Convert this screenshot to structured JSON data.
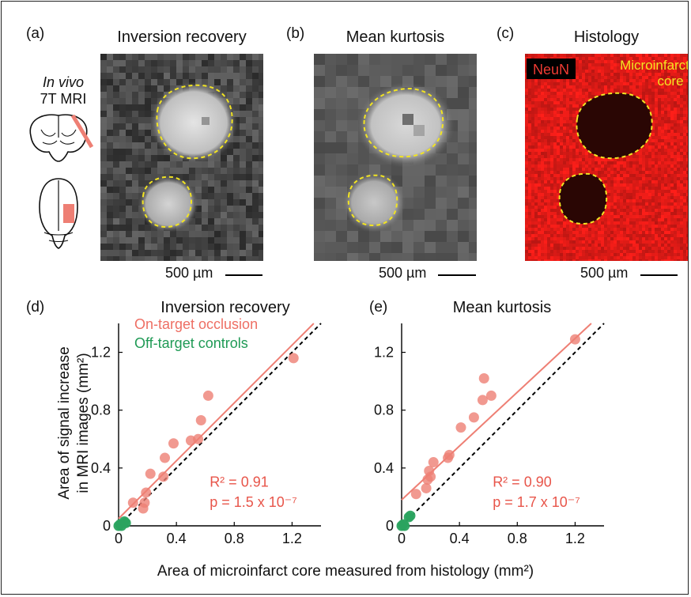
{
  "panels": {
    "a": {
      "label": "(a)",
      "title": "Inversion recovery",
      "scale_bar": "500 µm"
    },
    "b": {
      "label": "(b)",
      "title": "Mean kurtosis",
      "scale_bar": "500 µm"
    },
    "c": {
      "label": "(c)",
      "title": "Histology",
      "scale_bar": "500 µm",
      "stain_label": "NeuN",
      "core_label_line1": "Microinfarct",
      "core_label_line2": "core"
    }
  },
  "side_label": {
    "line1": "In vivo",
    "line2": "7T MRI"
  },
  "colors": {
    "on_target": "#ee7f74",
    "off_target": "#2aa35f",
    "outline": "#f2e422",
    "stain": "#e8201c"
  },
  "y_axis_label": {
    "line1": "Area of signal increase",
    "line2": "in MRI images (mm²)"
  },
  "x_axis_label": "Area of microinfarct core measured from histology (mm²)",
  "chart_data": [
    {
      "type": "scatter",
      "panel_label": "(d)",
      "title": "Inversion recovery",
      "legend": [
        "On-target occlusion",
        "Off-target controls"
      ],
      "xlim": [
        0,
        1.4
      ],
      "ylim": [
        0,
        1.4
      ],
      "xticks": [
        "0",
        "0.4",
        "0.8",
        "1.2"
      ],
      "yticks": [
        "0",
        "0.4",
        "0.8",
        "1.2"
      ],
      "stats": {
        "r2": "R² = 0.91",
        "p": "p = 1.5 x 10⁻⁷"
      },
      "fit_line": {
        "intercept": 0.05,
        "slope": 1.0
      },
      "series": [
        {
          "name": "On-target occlusion",
          "x": [
            0.1,
            0.17,
            0.18,
            0.19,
            0.22,
            0.31,
            0.32,
            0.38,
            0.5,
            0.55,
            0.57,
            0.62,
            1.21
          ],
          "y": [
            0.16,
            0.12,
            0.16,
            0.23,
            0.36,
            0.34,
            0.47,
            0.57,
            0.59,
            0.6,
            0.73,
            0.9,
            1.16
          ]
        },
        {
          "name": "Off-target controls",
          "x": [
            0.0,
            0.01,
            0.02,
            0.04,
            0.05
          ],
          "y": [
            0.0,
            0.01,
            0.0,
            0.03,
            0.02
          ]
        }
      ]
    },
    {
      "type": "scatter",
      "panel_label": "(e)",
      "title": "Mean kurtosis",
      "xlim": [
        0,
        1.4
      ],
      "ylim": [
        0,
        1.4
      ],
      "xticks": [
        "0",
        "0.4",
        "0.8",
        "1.2"
      ],
      "yticks": [
        "0",
        "0.4",
        "0.8",
        "1.2"
      ],
      "stats": {
        "r2": "R² = 0.90",
        "p": "p = 1.7 x 10⁻⁷"
      },
      "fit_line": {
        "intercept": 0.18,
        "slope": 0.93
      },
      "series": [
        {
          "name": "On-target occlusion",
          "x": [
            0.1,
            0.17,
            0.18,
            0.19,
            0.2,
            0.22,
            0.32,
            0.33,
            0.41,
            0.5,
            0.56,
            0.57,
            0.62,
            1.2
          ],
          "y": [
            0.22,
            0.26,
            0.32,
            0.38,
            0.34,
            0.44,
            0.47,
            0.49,
            0.68,
            0.75,
            0.87,
            1.02,
            0.9,
            1.29
          ]
        },
        {
          "name": "Off-target controls",
          "x": [
            0.0,
            0.01,
            0.02,
            0.05,
            0.06
          ],
          "y": [
            0.0,
            0.01,
            0.0,
            0.06,
            0.07
          ]
        }
      ]
    }
  ]
}
